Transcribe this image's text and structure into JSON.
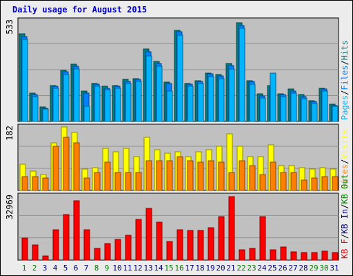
{
  "title": "Daily usage for August 2015",
  "colors": {
    "pages": "#00b4ff",
    "files": "#0080ff",
    "hits": "#008080",
    "visits": "#ffff00",
    "sites": "#ff8000",
    "kb_in": "#0000a0",
    "kb_out": "#008000",
    "kb_f": "#ff0000",
    "panel_bg": "#c0c0c0",
    "frame_bg": "#ececec",
    "weekend_day": "#008000",
    "weekday": "#000080"
  },
  "chart_data": [
    {
      "type": "bar",
      "title": "",
      "ymax_label": "533",
      "ylim": [
        0,
        533
      ],
      "legend_position": "right-vertical",
      "legend": [
        {
          "label": "Pages",
          "color_key": "pages"
        },
        {
          "label": "/",
          "color_key": "sep"
        },
        {
          "label": "Files",
          "color_key": "files"
        },
        {
          "label": "/",
          "color_key": "sep"
        },
        {
          "label": "Hits",
          "color_key": "hits"
        }
      ],
      "series": [
        {
          "name": "Hits",
          "values": [
            460,
            150,
            75,
            190,
            270,
            300,
            160,
            200,
            185,
            190,
            220,
            225,
            380,
            315,
            205,
            480,
            200,
            215,
            255,
            245,
            305,
            520,
            215,
            145,
            190,
            145,
            170,
            140,
            110,
            175,
            90
          ]
        },
        {
          "name": "Files",
          "values": [
            445,
            140,
            70,
            185,
            260,
            290,
            150,
            195,
            175,
            185,
            210,
            220,
            365,
            305,
            200,
            470,
            195,
            210,
            250,
            240,
            295,
            505,
            210,
            135,
            180,
            140,
            160,
            130,
            105,
            170,
            85
          ]
        },
        {
          "name": "Pages",
          "values": [
            430,
            130,
            65,
            175,
            245,
            275,
            80,
            185,
            165,
            175,
            200,
            210,
            345,
            290,
            160,
            455,
            185,
            200,
            235,
            225,
            275,
            490,
            195,
            125,
            255,
            130,
            150,
            120,
            95,
            160,
            80
          ]
        }
      ]
    },
    {
      "type": "bar",
      "title": "",
      "ymax_label": "182",
      "ylim": [
        0,
        182
      ],
      "legend_position": "right-vertical",
      "legend": [
        {
          "label": "Sites",
          "color_key": "sites"
        },
        {
          "label": "/",
          "color_key": "sep"
        },
        {
          "label": "Visits",
          "color_key": "visits"
        }
      ],
      "series": [
        {
          "name": "Visits",
          "values": [
            75,
            55,
            45,
            135,
            180,
            165,
            60,
            65,
            120,
            110,
            120,
            95,
            150,
            115,
            105,
            110,
            95,
            110,
            115,
            125,
            160,
            125,
            95,
            95,
            130,
            70,
            70,
            65,
            60,
            65,
            60
          ]
        },
        {
          "name": "Sites",
          "values": [
            40,
            40,
            35,
            125,
            150,
            135,
            35,
            50,
            80,
            50,
            50,
            50,
            85,
            85,
            85,
            95,
            85,
            80,
            85,
            80,
            50,
            85,
            70,
            45,
            80,
            50,
            50,
            30,
            35,
            40,
            40
          ]
        }
      ]
    },
    {
      "type": "bar",
      "title": "",
      "ymax_label": "32969",
      "ylim": [
        0,
        32969
      ],
      "legend_position": "right-vertical",
      "legend": [
        {
          "label": "KB F",
          "color_key": "kb_f"
        },
        {
          "label": "/",
          "color_key": "sep"
        },
        {
          "label": "KB In",
          "color_key": "kb_in"
        },
        {
          "label": "/",
          "color_key": "sep"
        },
        {
          "label": "KB Out",
          "color_key": "kb_out"
        }
      ],
      "series": [
        {
          "name": "KB F",
          "values": [
            11200,
            7800,
            2200,
            15600,
            23000,
            30200,
            15500,
            5800,
            8300,
            10400,
            12700,
            20800,
            26400,
            19200,
            9400,
            15600,
            15200,
            15200,
            16600,
            22200,
            32300,
            5400,
            6000,
            22200,
            5200,
            6700,
            4200,
            3900,
            3700,
            4700,
            3700
          ]
        }
      ]
    }
  ],
  "days": {
    "labels": [
      "1",
      "2",
      "3",
      "4",
      "5",
      "6",
      "7",
      "8",
      "9",
      "10",
      "11",
      "12",
      "13",
      "14",
      "15",
      "16",
      "17",
      "18",
      "19",
      "20",
      "21",
      "22",
      "23",
      "24",
      "25",
      "26",
      "27",
      "28",
      "29",
      "30",
      "31"
    ],
    "weekend": [
      1,
      2,
      8,
      9,
      15,
      16,
      22,
      23,
      29,
      30
    ]
  }
}
